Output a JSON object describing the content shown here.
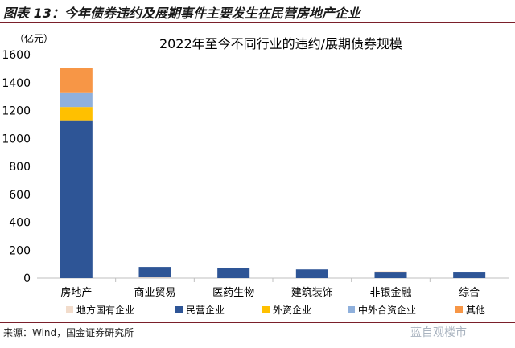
{
  "figure_title": "图表 13：今年债券违约及展期事件主要发生在民营房地产企业",
  "source_note": "来源：Wind，国金证券研究所",
  "watermark": "蓝自观楼市",
  "chart_data": {
    "type": "bar",
    "stacked": true,
    "title": "2022年至今不同行业的违约/展期债券规模",
    "ylabel": "（亿元）",
    "xlabel": "",
    "ylim": [
      0,
      1600
    ],
    "yticks": [
      0,
      200,
      400,
      600,
      800,
      1000,
      1200,
      1400,
      1600
    ],
    "grid": false,
    "legend_position": "bottom",
    "categories": [
      "房地产",
      "商业贸易",
      "医药生物",
      "建筑装饰",
      "非银金融",
      "综合"
    ],
    "series": [
      {
        "name": "地方国有企业",
        "color": "#f2dccb",
        "values": [
          0,
          5,
          0,
          0,
          0,
          0
        ]
      },
      {
        "name": "民营企业",
        "color": "#2e5596",
        "values": [
          1130,
          75,
          72,
          62,
          40,
          40
        ]
      },
      {
        "name": "外资企业",
        "color": "#ffc000",
        "values": [
          95,
          0,
          0,
          0,
          0,
          0
        ]
      },
      {
        "name": "中外合资企业",
        "color": "#8fb0dc",
        "values": [
          100,
          0,
          0,
          0,
          0,
          0
        ]
      },
      {
        "name": "其他",
        "color": "#f79646",
        "values": [
          180,
          0,
          0,
          0,
          7,
          0
        ]
      }
    ]
  }
}
